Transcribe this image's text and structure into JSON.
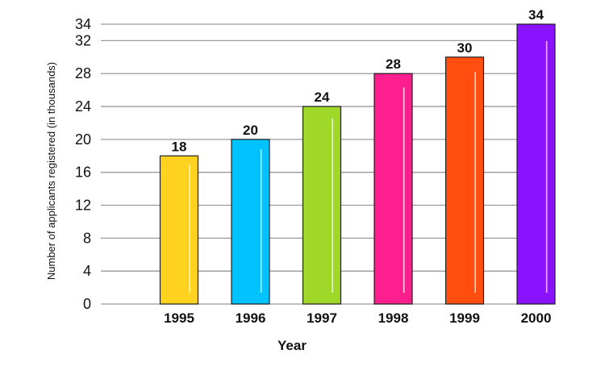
{
  "chart_data": {
    "type": "bar",
    "xlabel": "Year",
    "ylabel": "Number of applicants registered (in thousands)",
    "categories": [
      "1995",
      "1996",
      "1997",
      "1998",
      "1999",
      "2000"
    ],
    "values": [
      18,
      20,
      24,
      28,
      30,
      34
    ],
    "colors": [
      "#FFD21F",
      "#00C2FF",
      "#A0D82A",
      "#FF1E8E",
      "#FF4E10",
      "#8A12FF"
    ],
    "yticks": [
      0,
      4,
      8,
      12,
      16,
      20,
      24,
      28,
      32,
      34
    ],
    "ylim": [
      0,
      34
    ],
    "grid": true,
    "data_labels": true
  }
}
